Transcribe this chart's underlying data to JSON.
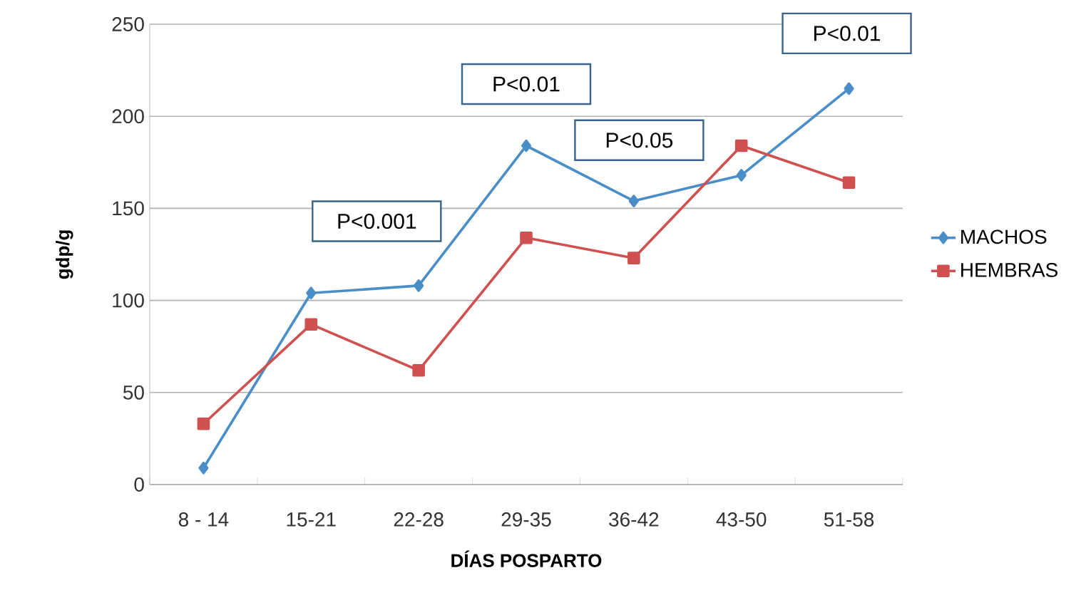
{
  "chart_data": {
    "type": "line",
    "xlabel": "DÍAS  POSPARTO",
    "ylabel": "gdp/g",
    "categories": [
      "8 - 14",
      "15-21",
      "22-28",
      "29-35",
      "36-42",
      "43-50",
      "51-58"
    ],
    "series": [
      {
        "name": "MACHOS",
        "color": "#4a8ec8",
        "marker": "diamond",
        "values": [
          9,
          104,
          108,
          184,
          154,
          168,
          215
        ]
      },
      {
        "name": "HEMBRAS",
        "color": "#d0504f",
        "marker": "square",
        "values": [
          33,
          87,
          62,
          134,
          123,
          184,
          164
        ]
      }
    ],
    "ylim": [
      0,
      250
    ],
    "yticks": [
      0,
      50,
      100,
      150,
      200,
      250
    ],
    "grid": "y",
    "legend": "right",
    "annotations": [
      "P<0.001",
      "P<0.01",
      "P<0.05",
      "P<0.01"
    ]
  }
}
